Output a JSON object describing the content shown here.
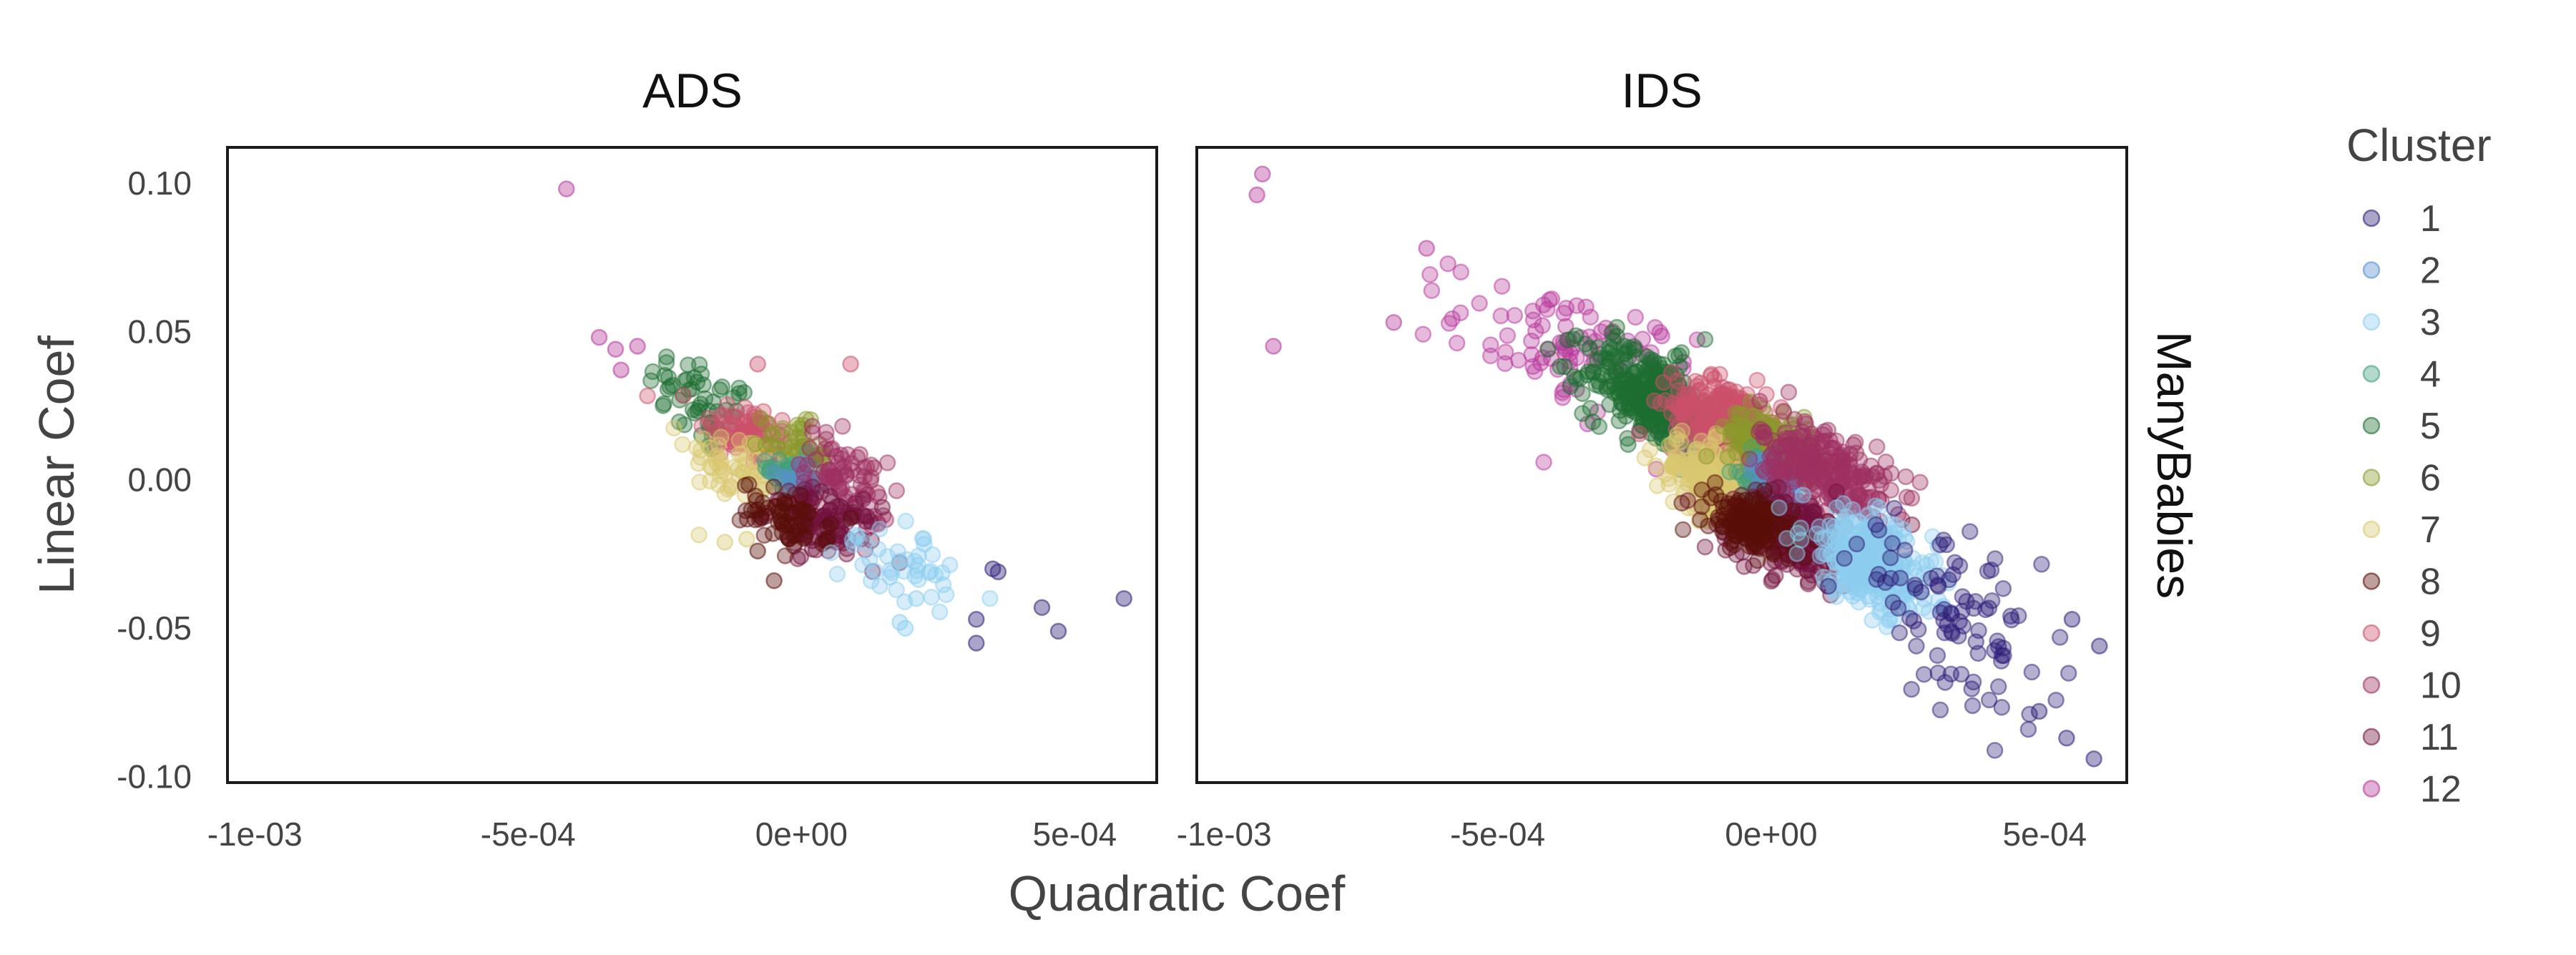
{
  "chart_data": {
    "type": "scatter",
    "xlabel": "Quadratic Coef",
    "ylabel": "Linear Coef",
    "xlim": [
      -0.00105,
      0.00065
    ],
    "ylim": [
      -0.102,
      0.112
    ],
    "x_ticks": [
      {
        "value": -0.001,
        "label": "-1e-03"
      },
      {
        "value": -0.0005,
        "label": "-5e-04"
      },
      {
        "value": 0.0,
        "label": "0e+00"
      },
      {
        "value": 0.0005,
        "label": "5e-04"
      }
    ],
    "y_ticks": [
      {
        "value": 0.1,
        "label": "0.10"
      },
      {
        "value": 0.05,
        "label": "0.05"
      },
      {
        "value": 0.0,
        "label": "0.00"
      },
      {
        "value": -0.05,
        "label": "-0.05"
      },
      {
        "value": -0.1,
        "label": "-0.10"
      }
    ],
    "grid": false,
    "legend_placement": "right",
    "legend_title": "Cluster",
    "row_strip": "ManyBabies",
    "point_opacity": 0.35,
    "clusters": [
      {
        "name": "1",
        "color": "#2d1e78"
      },
      {
        "name": "2",
        "color": "#5a8fd0"
      },
      {
        "name": "3",
        "color": "#8dcdf0"
      },
      {
        "name": "4",
        "color": "#3fa07e"
      },
      {
        "name": "5",
        "color": "#1e6e32"
      },
      {
        "name": "6",
        "color": "#8a9a2a"
      },
      {
        "name": "7",
        "color": "#d9c870"
      },
      {
        "name": "8",
        "color": "#5a0e08"
      },
      {
        "name": "9",
        "color": "#cc4f6a"
      },
      {
        "name": "10",
        "color": "#9e3060"
      },
      {
        "name": "11",
        "color": "#74123e"
      },
      {
        "name": "12",
        "color": "#b7389b"
      }
    ],
    "panels": [
      {
        "title": "ADS",
        "blobs": [
          {
            "cluster": 5,
            "cx": -0.00018,
            "cy": 0.025,
            "sx": 5e-05,
            "sy": 0.009,
            "rho": -0.5,
            "n": 55
          },
          {
            "cluster": 9,
            "cx": -0.0001,
            "cy": 0.016,
            "sx": 4.5e-05,
            "sy": 0.006,
            "rho": -0.4,
            "n": 85
          },
          {
            "cluster": 7,
            "cx": -0.00011,
            "cy": 0.004,
            "sx": 5e-05,
            "sy": 0.007,
            "rho": -0.4,
            "n": 65
          },
          {
            "cluster": 6,
            "cx": -1e-05,
            "cy": 0.011,
            "sx": 3e-05,
            "sy": 0.005,
            "rho": -0.4,
            "n": 45
          },
          {
            "cluster": 4,
            "cx": -2e-05,
            "cy": 0.002,
            "sx": 2.2e-05,
            "sy": 0.004,
            "rho": -0.3,
            "n": 35
          },
          {
            "cluster": 2,
            "cx": 0.0,
            "cy": 0.0,
            "sx": 2e-05,
            "sy": 0.003,
            "rho": -0.3,
            "n": 20
          },
          {
            "cluster": 10,
            "cx": 8e-05,
            "cy": 0.0,
            "sx": 4e-05,
            "sy": 0.008,
            "rho": -0.5,
            "n": 85
          },
          {
            "cluster": 11,
            "cx": 4e-05,
            "cy": -0.015,
            "sx": 5e-05,
            "sy": 0.006,
            "rho": -0.4,
            "n": 110
          },
          {
            "cluster": 8,
            "cx": -3e-05,
            "cy": -0.013,
            "sx": 4e-05,
            "sy": 0.005,
            "rho": -0.4,
            "n": 60
          },
          {
            "cluster": 3,
            "cx": 0.00018,
            "cy": -0.027,
            "sx": 5.5e-05,
            "sy": 0.008,
            "rho": -0.5,
            "n": 45
          }
        ],
        "extra_points": [
          {
            "cluster": 12,
            "x": -0.00043,
            "y": 0.098
          },
          {
            "cluster": 12,
            "x": -0.00037,
            "y": 0.048
          },
          {
            "cluster": 12,
            "x": -0.00034,
            "y": 0.044
          },
          {
            "cluster": 12,
            "x": -0.0003,
            "y": 0.045
          },
          {
            "cluster": 12,
            "x": -0.00033,
            "y": 0.037
          },
          {
            "cluster": 9,
            "x": -8e-05,
            "y": 0.039
          },
          {
            "cluster": 9,
            "x": 9e-05,
            "y": 0.039
          },
          {
            "cluster": 7,
            "x": -0.00014,
            "y": -0.021
          },
          {
            "cluster": 7,
            "x": -0.0001,
            "y": -0.02
          },
          {
            "cluster": 8,
            "x": -8e-05,
            "y": -0.024
          },
          {
            "cluster": 8,
            "x": -5e-05,
            "y": -0.034
          },
          {
            "cluster": 1,
            "x": 0.00035,
            "y": -0.03
          },
          {
            "cluster": 1,
            "x": 0.00036,
            "y": -0.031
          },
          {
            "cluster": 1,
            "x": 0.00032,
            "y": -0.047
          },
          {
            "cluster": 1,
            "x": 0.00032,
            "y": -0.055
          },
          {
            "cluster": 1,
            "x": 0.00044,
            "y": -0.043
          },
          {
            "cluster": 1,
            "x": 0.00047,
            "y": -0.051
          },
          {
            "cluster": 1,
            "x": 0.00059,
            "y": -0.04
          },
          {
            "cluster": 3,
            "x": 0.00021,
            "y": -0.04
          },
          {
            "cluster": 3,
            "x": 0.00018,
            "y": -0.048
          },
          {
            "cluster": 3,
            "x": 0.00019,
            "y": -0.05
          }
        ]
      },
      {
        "title": "IDS",
        "blobs": [
          {
            "cluster": 12,
            "cx": -0.00036,
            "cy": 0.043,
            "sx": 0.00011,
            "sy": 0.012,
            "rho": -0.5,
            "n": 100
          },
          {
            "cluster": 5,
            "cx": -0.00022,
            "cy": 0.028,
            "sx": 6e-05,
            "sy": 0.009,
            "rho": -0.5,
            "n": 320
          },
          {
            "cluster": 9,
            "cx": -8e-05,
            "cy": 0.02,
            "sx": 5e-05,
            "sy": 0.007,
            "rho": -0.4,
            "n": 280
          },
          {
            "cluster": 7,
            "cx": -0.00011,
            "cy": 0.0,
            "sx": 5e-05,
            "sy": 0.007,
            "rho": -0.4,
            "n": 190
          },
          {
            "cluster": 6,
            "cx": 0.0,
            "cy": 0.011,
            "sx": 4e-05,
            "sy": 0.006,
            "rho": -0.4,
            "n": 160
          },
          {
            "cluster": 4,
            "cx": -1e-05,
            "cy": 0.0,
            "sx": 2.2e-05,
            "sy": 0.004,
            "rho": -0.3,
            "n": 80
          },
          {
            "cluster": 2,
            "cx": 1e-05,
            "cy": -0.001,
            "sx": 2.2e-05,
            "sy": 0.004,
            "rho": -0.3,
            "n": 60
          },
          {
            "cluster": 10,
            "cx": 0.0001,
            "cy": 0.003,
            "sx": 6e-05,
            "sy": 0.009,
            "rho": -0.5,
            "n": 260
          },
          {
            "cluster": 11,
            "cx": 4e-05,
            "cy": -0.019,
            "sx": 6e-05,
            "sy": 0.007,
            "rho": -0.4,
            "n": 280
          },
          {
            "cluster": 8,
            "cx": -4e-05,
            "cy": -0.015,
            "sx": 4e-05,
            "sy": 0.005,
            "rho": -0.4,
            "n": 150
          },
          {
            "cluster": 3,
            "cx": 0.00018,
            "cy": -0.028,
            "sx": 6e-05,
            "sy": 0.009,
            "rho": -0.5,
            "n": 300
          },
          {
            "cluster": 1,
            "cx": 0.00033,
            "cy": -0.046,
            "sx": 9e-05,
            "sy": 0.015,
            "rho": -0.6,
            "n": 95
          }
        ],
        "extra_points": [
          {
            "cluster": 12,
            "x": -0.00093,
            "y": 0.103
          },
          {
            "cluster": 12,
            "x": -0.00094,
            "y": 0.096
          },
          {
            "cluster": 12,
            "x": -0.00091,
            "y": 0.045
          },
          {
            "cluster": 12,
            "x": -0.00063,
            "y": 0.078
          },
          {
            "cluster": 12,
            "x": -0.00069,
            "y": 0.053
          },
          {
            "cluster": 1,
            "x": 0.00055,
            "y": -0.047
          },
          {
            "cluster": 1,
            "x": 0.0006,
            "y": -0.056
          },
          {
            "cluster": 1,
            "x": 0.00059,
            "y": -0.094
          },
          {
            "cluster": 1,
            "x": 0.00054,
            "y": -0.087
          },
          {
            "cluster": 1,
            "x": 0.00049,
            "y": -0.078
          }
        ]
      }
    ]
  }
}
